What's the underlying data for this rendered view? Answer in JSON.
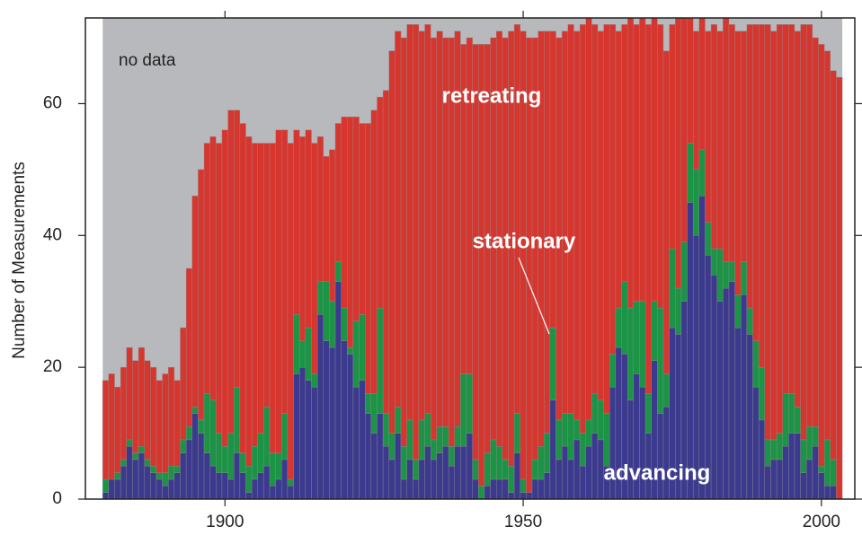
{
  "chart_data": {
    "type": "bar",
    "stacked": true,
    "y_label": "Number of Measurements",
    "annotation": "no data",
    "x": [
      1880,
      1881,
      1882,
      1883,
      1884,
      1885,
      1886,
      1887,
      1888,
      1889,
      1890,
      1891,
      1892,
      1893,
      1894,
      1895,
      1896,
      1897,
      1898,
      1899,
      1900,
      1901,
      1902,
      1903,
      1904,
      1905,
      1906,
      1907,
      1908,
      1909,
      1910,
      1911,
      1912,
      1913,
      1914,
      1915,
      1916,
      1917,
      1918,
      1919,
      1920,
      1921,
      1922,
      1923,
      1924,
      1925,
      1926,
      1927,
      1928,
      1929,
      1930,
      1931,
      1932,
      1933,
      1934,
      1935,
      1936,
      1937,
      1938,
      1939,
      1940,
      1941,
      1942,
      1943,
      1944,
      1945,
      1946,
      1947,
      1948,
      1949,
      1950,
      1951,
      1952,
      1953,
      1954,
      1955,
      1956,
      1957,
      1958,
      1959,
      1960,
      1961,
      1962,
      1963,
      1964,
      1965,
      1966,
      1967,
      1968,
      1969,
      1970,
      1971,
      1972,
      1973,
      1974,
      1975,
      1976,
      1977,
      1978,
      1979,
      1980,
      1981,
      1982,
      1983,
      1984,
      1985,
      1986,
      1987,
      1988,
      1989,
      1990,
      1991,
      1992,
      1993,
      1994,
      1995,
      1996,
      1997,
      1998,
      1999,
      2000,
      2001,
      2002,
      2003
    ],
    "series": [
      {
        "name": "advancing",
        "color": "#3b3a8e",
        "values": [
          1,
          3,
          3,
          5,
          8,
          6,
          7,
          5,
          4,
          3,
          2,
          3,
          4,
          7,
          9,
          13,
          10,
          7,
          5,
          4,
          4,
          3,
          7,
          4,
          1,
          3,
          4,
          5,
          2,
          3,
          6,
          2,
          19,
          20,
          18,
          17,
          28,
          24,
          23,
          33,
          24,
          22,
          17,
          18,
          13,
          10,
          13,
          8,
          6,
          10,
          3,
          6,
          3,
          6,
          8,
          6,
          7,
          8,
          5,
          8,
          8,
          10,
          3,
          0,
          2,
          3,
          3,
          3,
          1,
          7,
          1,
          1,
          3,
          3,
          4,
          15,
          6,
          8,
          6,
          9,
          5,
          8,
          10,
          9,
          5,
          17,
          23,
          22,
          15,
          19,
          17,
          10,
          21,
          13,
          14,
          26,
          25,
          30,
          45,
          40,
          46,
          37,
          34,
          30,
          32,
          33,
          26,
          31,
          25,
          17,
          12,
          5,
          6,
          6,
          8,
          10,
          10,
          4,
          6,
          8,
          4,
          2,
          2,
          0
        ]
      },
      {
        "name": "stationary",
        "color": "#1b9446",
        "values": [
          2,
          0,
          1,
          1,
          1,
          1,
          1,
          1,
          1,
          1,
          2,
          2,
          1,
          2,
          2,
          1,
          2,
          9,
          10,
          6,
          4,
          7,
          10,
          3,
          4,
          5,
          6,
          9,
          5,
          4,
          7,
          1,
          9,
          4,
          8,
          2,
          5,
          9,
          7,
          3,
          5,
          1,
          10,
          10,
          3,
          6,
          16,
          5,
          4,
          4,
          5,
          6,
          3,
          6,
          5,
          3,
          4,
          3,
          3,
          3,
          11,
          9,
          3,
          2,
          5,
          6,
          5,
          3,
          4,
          6,
          2,
          0,
          3,
          5,
          6,
          11,
          6,
          5,
          7,
          3,
          5,
          4,
          6,
          6,
          8,
          5,
          6,
          11,
          14,
          11,
          13,
          6,
          9,
          16,
          5,
          12,
          7,
          9,
          9,
          10,
          7,
          5,
          4,
          8,
          4,
          3,
          5,
          5,
          4,
          7,
          8,
          4,
          3,
          4,
          8,
          6,
          4,
          5,
          5,
          3,
          1,
          7,
          4,
          0
        ]
      },
      {
        "name": "retreating",
        "color": "#d7362f",
        "values": [
          15,
          16,
          13,
          14,
          14,
          14,
          15,
          15,
          15,
          14,
          15,
          15,
          13,
          17,
          24,
          32,
          38,
          38,
          40,
          44,
          48,
          49,
          42,
          50,
          50,
          46,
          44,
          40,
          47,
          49,
          43,
          51,
          28,
          31,
          30,
          35,
          22,
          19,
          23,
          21,
          29,
          35,
          31,
          29,
          41,
          43,
          32,
          49,
          58,
          57,
          62,
          60,
          66,
          59,
          59,
          61,
          60,
          59,
          62,
          60,
          50,
          51,
          63,
          67,
          62,
          61,
          63,
          64,
          66,
          59,
          68,
          69,
          64,
          63,
          61,
          45,
          58,
          58,
          59,
          59,
          62,
          61,
          56,
          56,
          59,
          50,
          42,
          39,
          44,
          42,
          43,
          56,
          43,
          43,
          49,
          34,
          41,
          34,
          19,
          21,
          20,
          29,
          34,
          33,
          37,
          36,
          40,
          35,
          43,
          48,
          52,
          63,
          62,
          62,
          56,
          56,
          57,
          63,
          61,
          59,
          64,
          59,
          59,
          64
        ]
      }
    ],
    "no_data_color": "#b8b9bd",
    "xlim": [
      1876.6,
      2005.6
    ],
    "xticks": [
      1900,
      1950,
      2000
    ],
    "ylim": [
      0,
      73
    ],
    "yticks": [
      0,
      20,
      40,
      60
    ]
  }
}
